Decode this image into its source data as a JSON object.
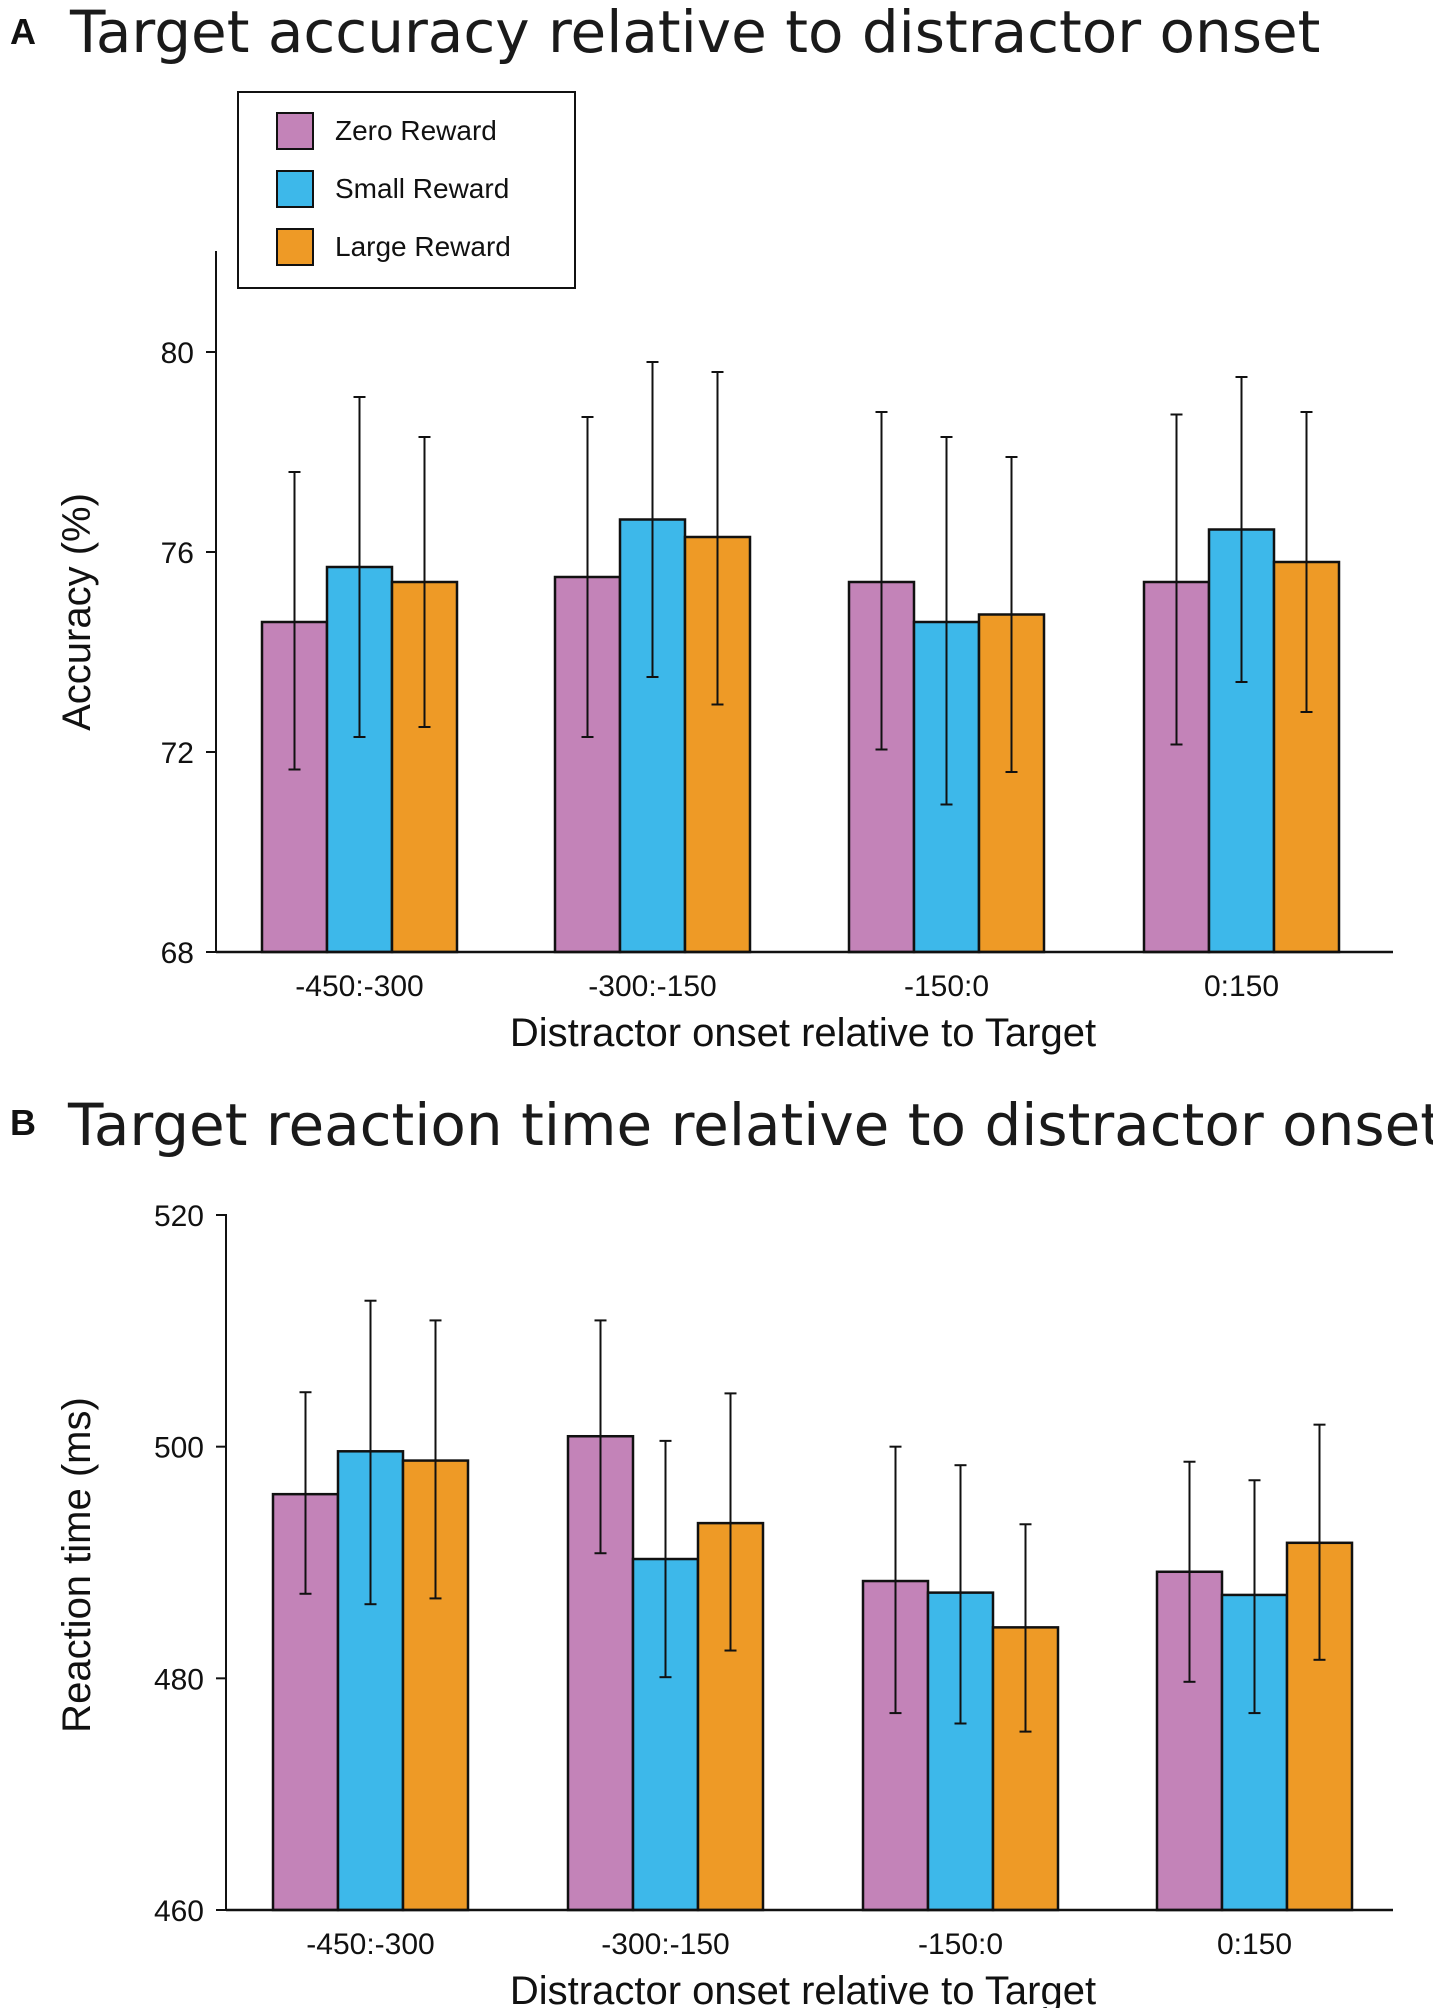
{
  "legend": {
    "series": [
      {
        "name": "Zero Reward",
        "color": "#c383b8"
      },
      {
        "name": "Small Reward",
        "color": "#3db8ea"
      },
      {
        "name": "Large Reward",
        "color": "#ee9a26"
      }
    ]
  },
  "chart_data": [
    {
      "panel": "A",
      "type": "bar",
      "title": "Target accuracy relative to distractor onset",
      "xlabel": "Distractor onset relative to Target",
      "ylabel": "Accuracy (%)",
      "categories": [
        "-450:-300",
        "-300:-150",
        "-150:0",
        "0:150"
      ],
      "ylim": [
        68,
        82
      ],
      "yticks": [
        68,
        72,
        76,
        80
      ],
      "series": [
        {
          "name": "Zero Reward",
          "values": [
            74.6,
            75.5,
            75.4,
            75.4
          ],
          "err_upper": [
            77.6,
            78.7,
            78.8,
            78.75
          ],
          "err_lower": [
            71.65,
            72.3,
            72.05,
            72.15
          ]
        },
        {
          "name": "Small Reward",
          "values": [
            75.7,
            76.65,
            74.6,
            76.45
          ],
          "err_upper": [
            79.1,
            79.8,
            78.3,
            79.5
          ],
          "err_lower": [
            72.3,
            73.5,
            70.95,
            73.4
          ]
        },
        {
          "name": "Large Reward",
          "values": [
            75.4,
            76.3,
            74.75,
            75.8
          ],
          "err_upper": [
            78.3,
            79.6,
            77.9,
            78.8
          ],
          "err_lower": [
            72.5,
            72.95,
            71.6,
            72.8
          ]
        }
      ]
    },
    {
      "panel": "B",
      "type": "bar",
      "title": "Target reaction time relative to distractor onset",
      "xlabel": "Distractor onset relative to Target",
      "ylabel": "Reaction time (ms)",
      "categories": [
        "-450:-300",
        "-300:-150",
        "-150:0",
        "0:150"
      ],
      "ylim": [
        460,
        520
      ],
      "yticks": [
        460,
        480,
        500,
        520
      ],
      "series": [
        {
          "name": "Zero Reward",
          "values": [
            495.9,
            500.9,
            488.4,
            489.2
          ],
          "err_upper": [
            504.7,
            510.9,
            500.0,
            498.7
          ],
          "err_lower": [
            487.3,
            490.8,
            477.0,
            479.7
          ]
        },
        {
          "name": "Small Reward",
          "values": [
            499.6,
            490.3,
            487.4,
            487.2
          ],
          "err_upper": [
            512.6,
            500.5,
            498.4,
            497.1
          ],
          "err_lower": [
            486.4,
            480.1,
            476.1,
            477.0
          ]
        },
        {
          "name": "Large Reward",
          "values": [
            498.8,
            493.4,
            484.4,
            491.7
          ],
          "err_upper": [
            510.9,
            504.6,
            493.3,
            501.9
          ],
          "err_lower": [
            486.9,
            482.4,
            475.4,
            481.6
          ]
        }
      ]
    }
  ]
}
